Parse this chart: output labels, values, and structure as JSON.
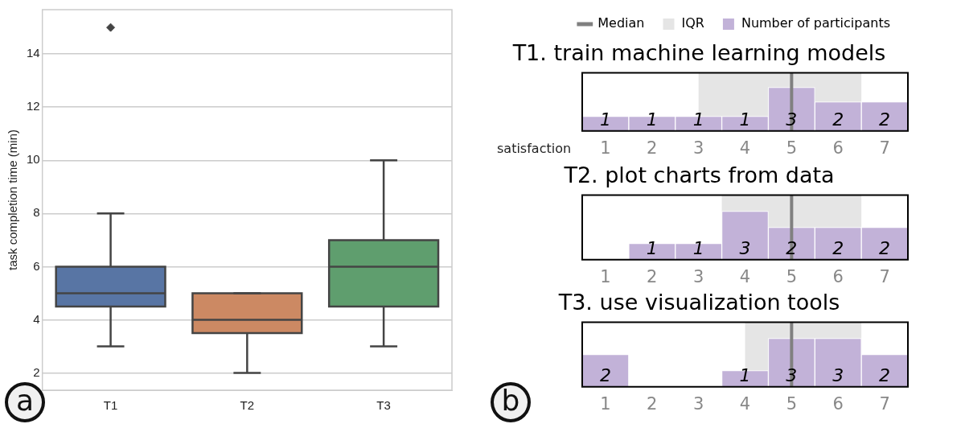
{
  "chart_data": [
    {
      "type": "box",
      "ylabel": "task completion time (min)",
      "categories": [
        "T1",
        "T2",
        "T3"
      ],
      "colors": [
        "#5875a4",
        "#cc8963",
        "#5f9e6e"
      ],
      "boxes": [
        {
          "low": 3,
          "q1": 4.5,
          "median": 5,
          "q3": 6,
          "high": 8,
          "outliers": [
            15
          ]
        },
        {
          "low": 2,
          "q1": 3.5,
          "median": 4,
          "q3": 5,
          "high": 5
        },
        {
          "low": 3,
          "q1": 4.5,
          "median": 6,
          "q3": 7,
          "high": 10
        }
      ],
      "ylim": [
        1.35,
        15.67
      ],
      "yticks": [
        2,
        4,
        6,
        8,
        10,
        12,
        14
      ],
      "grid": "y",
      "legend": false,
      "annotations": [
        "a"
      ]
    },
    {
      "type": "bar",
      "title": "T1. train machine learning models",
      "xlabel": "satisfaction",
      "x": [
        1,
        2,
        3,
        4,
        5,
        6,
        7
      ],
      "xlim": [
        0.5,
        7.5
      ],
      "xticks": [
        1,
        2,
        3,
        4,
        5,
        6,
        7
      ],
      "ylim": [
        0,
        4
      ],
      "tick_labels": "x",
      "legend": "top",
      "series": [
        {
          "name": "Number of participants",
          "color": "#c2b2d8",
          "values": [
            1,
            1,
            1,
            1,
            3,
            2,
            2
          ],
          "value_labels": [
            "1",
            "1",
            "1",
            "1",
            "3",
            "2",
            "2"
          ]
        }
      ],
      "ref_lines": [
        {
          "axis": "x",
          "value": 5,
          "label": "Median",
          "color": "#808080"
        }
      ],
      "bands": [
        {
          "axis": "x",
          "from": 3,
          "to": 6.5,
          "label": "IQR",
          "color": "#e5e5e5"
        }
      ],
      "annotations": [
        "b"
      ]
    },
    {
      "type": "bar",
      "title": "T2. plot charts from data",
      "x": [
        1,
        2,
        3,
        4,
        5,
        6,
        7
      ],
      "xlim": [
        0.5,
        7.5
      ],
      "xticks": [
        1,
        2,
        3,
        4,
        5,
        6,
        7
      ],
      "ylim": [
        0,
        4
      ],
      "tick_labels": "x",
      "legend": false,
      "series": [
        {
          "color": "#c2b2d8",
          "values": [
            0,
            1,
            1,
            3,
            2,
            2,
            2
          ],
          "value_labels": [
            null,
            "1",
            "1",
            "3",
            "2",
            "2",
            "2"
          ]
        }
      ],
      "ref_lines": [
        {
          "axis": "x",
          "value": 5,
          "color": "#808080"
        }
      ],
      "bands": [
        {
          "axis": "x",
          "from": 3.5,
          "to": 6.5,
          "color": "#e5e5e5"
        }
      ]
    },
    {
      "type": "bar",
      "title": "T3. use visualization tools",
      "x": [
        1,
        2,
        3,
        4,
        5,
        6,
        7
      ],
      "xlim": [
        0.5,
        7.5
      ],
      "xticks": [
        1,
        2,
        3,
        4,
        5,
        6,
        7
      ],
      "ylim": [
        0,
        4
      ],
      "tick_labels": "x",
      "legend": false,
      "series": [
        {
          "color": "#c2b2d8",
          "values": [
            2,
            0,
            0,
            1,
            3,
            3,
            2
          ],
          "value_labels": [
            "2",
            null,
            null,
            "1",
            "3",
            "3",
            "2"
          ]
        }
      ],
      "ref_lines": [
        {
          "axis": "x",
          "value": 5,
          "color": "#808080"
        }
      ],
      "bands": [
        {
          "axis": "x",
          "from": 4,
          "to": 6.5,
          "color": "#e5e5e5"
        }
      ]
    }
  ]
}
